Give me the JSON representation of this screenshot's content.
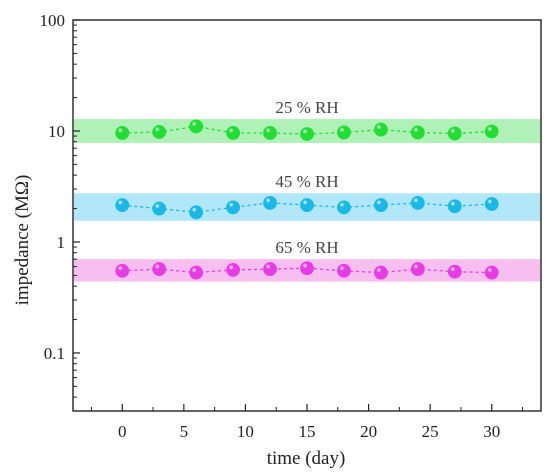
{
  "chart_data": {
    "type": "scatter",
    "xlabel": "time (day)",
    "ylabel": "impedance (MΩ)",
    "x_scale": "linear",
    "y_scale": "log",
    "xlim": [
      -4,
      34
    ],
    "ylim": [
      0.03,
      100
    ],
    "x_ticks": [
      0,
      5,
      10,
      15,
      20,
      25,
      30
    ],
    "y_ticks": [
      0.1,
      1,
      10,
      100
    ],
    "x_tick_labels": [
      "0",
      "5",
      "10",
      "15",
      "20",
      "25",
      "30"
    ],
    "y_tick_labels": [
      "0.1",
      "1",
      "10",
      "100"
    ],
    "grid": false,
    "x": [
      0,
      3,
      6,
      9,
      12,
      15,
      18,
      21,
      24,
      27,
      30
    ],
    "series": [
      {
        "label": "25 % RH",
        "color": "#22dd33",
        "band_color": "#a6f0ae",
        "band_range": [
          7.8,
          12.8
        ],
        "values": [
          9.6,
          9.8,
          11.0,
          9.6,
          9.6,
          9.4,
          9.7,
          10.3,
          9.7,
          9.5,
          9.9
        ]
      },
      {
        "label": "45 % RH",
        "color": "#19b8e6",
        "band_color": "#a8e4f8",
        "band_range": [
          1.55,
          2.75
        ],
        "values": [
          2.15,
          2.0,
          1.85,
          2.05,
          2.25,
          2.15,
          2.05,
          2.15,
          2.25,
          2.1,
          2.2
        ]
      },
      {
        "label": "65 % RH",
        "color": "#e63ce6",
        "band_color": "#f6b8ee",
        "band_range": [
          0.44,
          0.7
        ],
        "values": [
          0.55,
          0.57,
          0.53,
          0.56,
          0.57,
          0.58,
          0.55,
          0.53,
          0.57,
          0.54,
          0.53
        ]
      }
    ]
  }
}
